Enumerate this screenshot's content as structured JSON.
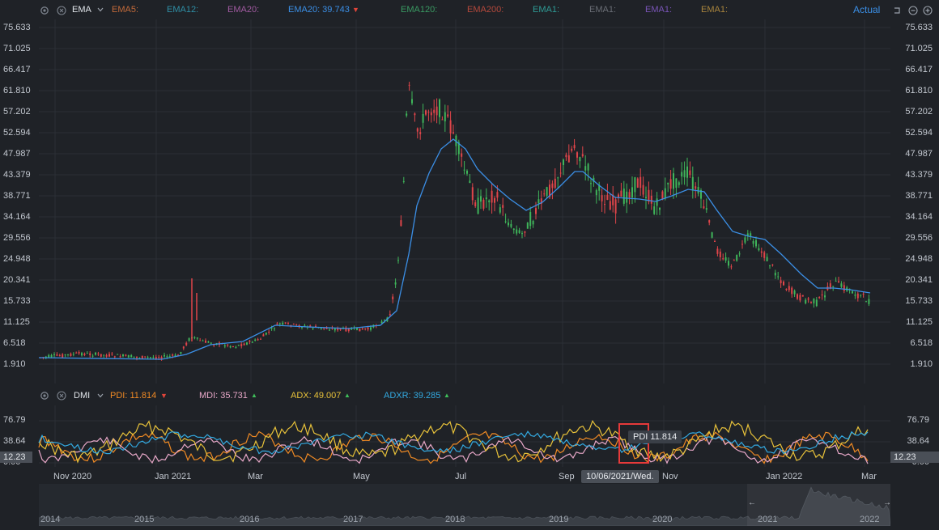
{
  "main_toolbar": {
    "indicator_name": "EMA",
    "settings_icon": "gear-icon",
    "close_icon": "close-icon",
    "dropdown_icon": "chevron-down-icon",
    "items": [
      {
        "label": "EMA5:",
        "color": "#c26a3a"
      },
      {
        "label": "EMA12:",
        "color": "#2f8fa6"
      },
      {
        "label": "EMA20:",
        "color": "#a05aa0"
      },
      {
        "label": "EMA20: 39.743",
        "color": "#3b8fe6"
      },
      {
        "label": "EMA120:",
        "color": "#3a9a62"
      },
      {
        "label": "EMA200:",
        "color": "#b5493c"
      },
      {
        "label": "EMA1:",
        "color": "#2e9b95"
      },
      {
        "label": "EMA1:",
        "color": "#6a6e75"
      },
      {
        "label": "EMA1:",
        "color": "#7a55b8"
      },
      {
        "label": "EMA1:",
        "color": "#a8843d"
      }
    ],
    "down_arrow": "▼",
    "actual_label": "Actual",
    "right_icons": [
      "undo-icon",
      "zoom-out-icon",
      "add-icon"
    ]
  },
  "price_axis": [
    "75.633",
    "71.025",
    "66.417",
    "61.810",
    "57.202",
    "52.594",
    "47.987",
    "43.379",
    "38.771",
    "34.164",
    "29.556",
    "24.948",
    "20.341",
    "15.733",
    "11.125",
    "6.518",
    "1.910"
  ],
  "dmi_toolbar": {
    "indicator_name": "DMI",
    "items": [
      {
        "label": "PDI: 11.814",
        "color": "#f08a24",
        "arrow": "▼",
        "arrow_color": "#e0453a"
      },
      {
        "label": "MDI: 35.731",
        "color": "#e8a8c8",
        "arrow": "▲",
        "arrow_color": "#3fbf5a"
      },
      {
        "label": "ADX: 49.007",
        "color": "#e8c23a",
        "arrow": "▲",
        "arrow_color": "#3fbf5a"
      },
      {
        "label": "ADXR: 39.285",
        "color": "#33a9e0",
        "arrow": "▲",
        "arrow_color": "#3fbf5a"
      }
    ]
  },
  "dmi_axis": [
    "76.79",
    "38.64",
    "0.00"
  ],
  "dmi_current_value": "12.23",
  "tooltip": "PDI 11.814",
  "crosshair_date": "10/06/2021/Wed.",
  "x_axis": [
    "Nov 2020",
    "Jan 2021",
    "Mar",
    "May",
    "Jul",
    "Sep",
    "Nov",
    "Jan 2022",
    "Mar"
  ],
  "navigator": {
    "years": [
      "2014",
      "2015",
      "2016",
      "2017",
      "2018",
      "2019",
      "2020",
      "2021",
      "2022"
    ],
    "left_handle": "←",
    "right_handle": "→"
  },
  "colors": {
    "background": "#1f2227",
    "grid": "#2b2f35",
    "up": "#3fb55a",
    "down": "#e0454a",
    "ema": "#3b8fe6",
    "highlight_box": "#e63a3a"
  }
}
